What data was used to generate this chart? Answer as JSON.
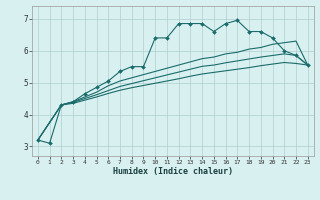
{
  "xlabel": "Humidex (Indice chaleur)",
  "xlim": [
    -0.5,
    23.5
  ],
  "ylim": [
    2.7,
    7.4
  ],
  "bg_color": "#d9f0f0",
  "grid_color": "#b0cece",
  "line_color": "#1a6b6b",
  "xticks": [
    0,
    1,
    2,
    3,
    4,
    5,
    6,
    7,
    8,
    9,
    10,
    11,
    12,
    13,
    14,
    15,
    16,
    17,
    18,
    19,
    20,
    21,
    22,
    23
  ],
  "yticks": [
    3,
    4,
    5,
    6,
    7
  ],
  "lines": [
    {
      "x": [
        0,
        1,
        2,
        3,
        4,
        5,
        6,
        7,
        8,
        9,
        10,
        11,
        12,
        13,
        14,
        15,
        16,
        17,
        18,
        19,
        20,
        21,
        22,
        23
      ],
      "y": [
        3.2,
        3.1,
        4.3,
        4.4,
        4.65,
        4.85,
        5.05,
        5.35,
        5.5,
        5.5,
        6.4,
        6.4,
        6.85,
        6.85,
        6.85,
        6.6,
        6.85,
        6.95,
        6.6,
        6.6,
        6.4,
        6.0,
        5.85,
        5.55
      ],
      "marker": true
    },
    {
      "x": [
        0,
        2,
        3,
        4,
        5,
        6,
        7,
        8,
        9,
        10,
        11,
        12,
        13,
        14,
        15,
        16,
        17,
        18,
        19,
        20,
        21,
        22,
        23
      ],
      "y": [
        3.2,
        4.3,
        4.4,
        4.55,
        4.7,
        4.9,
        5.05,
        5.15,
        5.25,
        5.35,
        5.45,
        5.55,
        5.65,
        5.75,
        5.8,
        5.9,
        5.95,
        6.05,
        6.1,
        6.2,
        6.25,
        6.3,
        5.55
      ],
      "marker": false
    },
    {
      "x": [
        0,
        2,
        3,
        4,
        5,
        6,
        7,
        8,
        9,
        10,
        11,
        12,
        13,
        14,
        15,
        16,
        17,
        18,
        19,
        20,
        21,
        22,
        23
      ],
      "y": [
        3.2,
        4.3,
        4.38,
        4.5,
        4.62,
        4.75,
        4.88,
        4.97,
        5.06,
        5.15,
        5.24,
        5.33,
        5.42,
        5.51,
        5.55,
        5.62,
        5.68,
        5.74,
        5.8,
        5.85,
        5.9,
        5.85,
        5.55
      ],
      "marker": false
    },
    {
      "x": [
        0,
        2,
        3,
        4,
        5,
        6,
        7,
        8,
        9,
        10,
        11,
        12,
        13,
        14,
        15,
        16,
        17,
        18,
        19,
        20,
        21,
        22,
        23
      ],
      "y": [
        3.2,
        4.3,
        4.35,
        4.45,
        4.55,
        4.66,
        4.76,
        4.84,
        4.91,
        4.98,
        5.05,
        5.12,
        5.2,
        5.27,
        5.32,
        5.37,
        5.42,
        5.47,
        5.53,
        5.58,
        5.63,
        5.6,
        5.55
      ],
      "marker": false
    }
  ]
}
